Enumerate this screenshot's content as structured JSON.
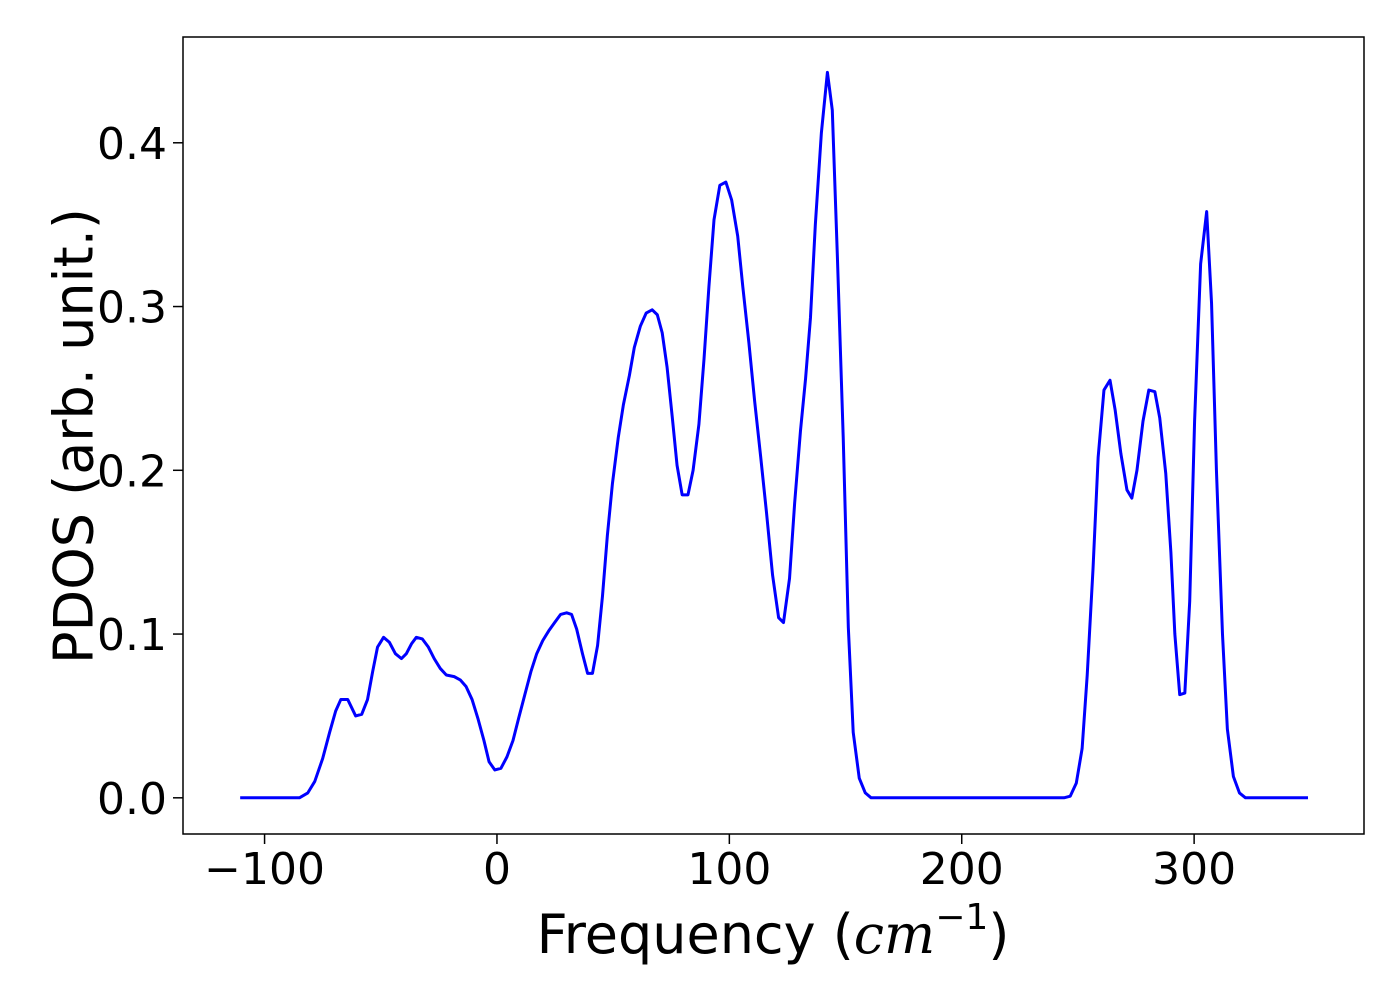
{
  "chart_data": {
    "type": "line",
    "xlabel": [
      "Frequency (",
      "cm",
      "−1",
      ")"
    ],
    "ylabel": "PDOS (arb. unit.)",
    "color": "#0000ff",
    "xlim": [
      -135.1,
      373.1
    ],
    "ylim": [
      -0.0221,
      0.4646
    ],
    "xticks": [
      {
        "value": -100,
        "label": "−100"
      },
      0,
      100,
      200,
      300
    ],
    "yticks": [
      {
        "value": 0,
        "label": "0.0"
      },
      0.1,
      0.2,
      0.3,
      0.4
    ],
    "x": [
      -110.5,
      -85,
      -81.4,
      -78.4,
      -75,
      -72,
      -69.4,
      -67.2,
      -64.2,
      -60.8,
      -58.2,
      -55.7,
      -53.5,
      -51.4,
      -48.8,
      -46.3,
      -43.7,
      -41.1,
      -39,
      -36.8,
      -34.7,
      -32.1,
      -29.5,
      -27,
      -24.4,
      -21.8,
      -18.4,
      -15.8,
      -13.3,
      -10.7,
      -8.1,
      -5.6,
      -3.4,
      -0.9,
      1.7,
      4.3,
      6.9,
      9.4,
      12,
      14.6,
      17.1,
      19.7,
      22.3,
      24.8,
      27.4,
      30,
      32.1,
      34.3,
      36.8,
      39,
      41.1,
      43.3,
      45.4,
      47.5,
      49.7,
      52.2,
      54.4,
      57,
      59.1,
      61.7,
      64.2,
      66.8,
      69,
      71.1,
      73.2,
      75.4,
      77.5,
      79.7,
      82.2,
      84.4,
      86.9,
      89.1,
      91.2,
      93.4,
      95.9,
      98.5,
      101,
      103.6,
      105.8,
      108.4,
      110.9,
      113.5,
      116,
      118.6,
      121.2,
      123.3,
      125.9,
      128.1,
      130.6,
      132.8,
      134.9,
      137,
      139.6,
      142.2,
      144.3,
      146.5,
      149,
      151.2,
      153.3,
      155.9,
      158.5,
      161,
      244,
      246.7,
      249.3,
      251.8,
      254,
      256.5,
      258.7,
      261.2,
      263.8,
      266,
      268.5,
      271.1,
      273.2,
      275.4,
      278,
      280.5,
      283.1,
      285.2,
      287.8,
      290,
      291.7,
      293.8,
      296,
      298.1,
      300.2,
      302.8,
      305.4,
      307.5,
      309.6,
      312.2,
      314.3,
      316.9,
      319.5,
      322.1,
      349
    ],
    "values": [
      0,
      0,
      0.003,
      0.01,
      0.024,
      0.04,
      0.053,
      0.06,
      0.06,
      0.05,
      0.051,
      0.06,
      0.077,
      0.092,
      0.098,
      0.095,
      0.088,
      0.085,
      0.088,
      0.094,
      0.098,
      0.097,
      0.092,
      0.085,
      0.079,
      0.075,
      0.074,
      0.072,
      0.068,
      0.06,
      0.048,
      0.035,
      0.022,
      0.017,
      0.018,
      0.025,
      0.035,
      0.049,
      0.063,
      0.077,
      0.088,
      0.096,
      0.102,
      0.107,
      0.112,
      0.113,
      0.112,
      0.103,
      0.088,
      0.076,
      0.076,
      0.093,
      0.123,
      0.16,
      0.192,
      0.22,
      0.24,
      0.258,
      0.275,
      0.288,
      0.296,
      0.298,
      0.295,
      0.284,
      0.263,
      0.233,
      0.203,
      0.185,
      0.185,
      0.2,
      0.228,
      0.268,
      0.312,
      0.353,
      0.374,
      0.376,
      0.365,
      0.343,
      0.312,
      0.278,
      0.242,
      0.208,
      0.174,
      0.136,
      0.11,
      0.107,
      0.134,
      0.18,
      0.224,
      0.256,
      0.293,
      0.35,
      0.406,
      0.443,
      0.42,
      0.33,
      0.22,
      0.104,
      0.04,
      0.012,
      0.003,
      0,
      0,
      0.001,
      0.009,
      0.03,
      0.075,
      0.14,
      0.208,
      0.249,
      0.255,
      0.237,
      0.21,
      0.188,
      0.183,
      0.2,
      0.23,
      0.249,
      0.248,
      0.232,
      0.198,
      0.15,
      0.1,
      0.063,
      0.064,
      0.12,
      0.23,
      0.326,
      0.358,
      0.302,
      0.2,
      0.1,
      0.042,
      0.013,
      0.003,
      0,
      0
    ]
  }
}
